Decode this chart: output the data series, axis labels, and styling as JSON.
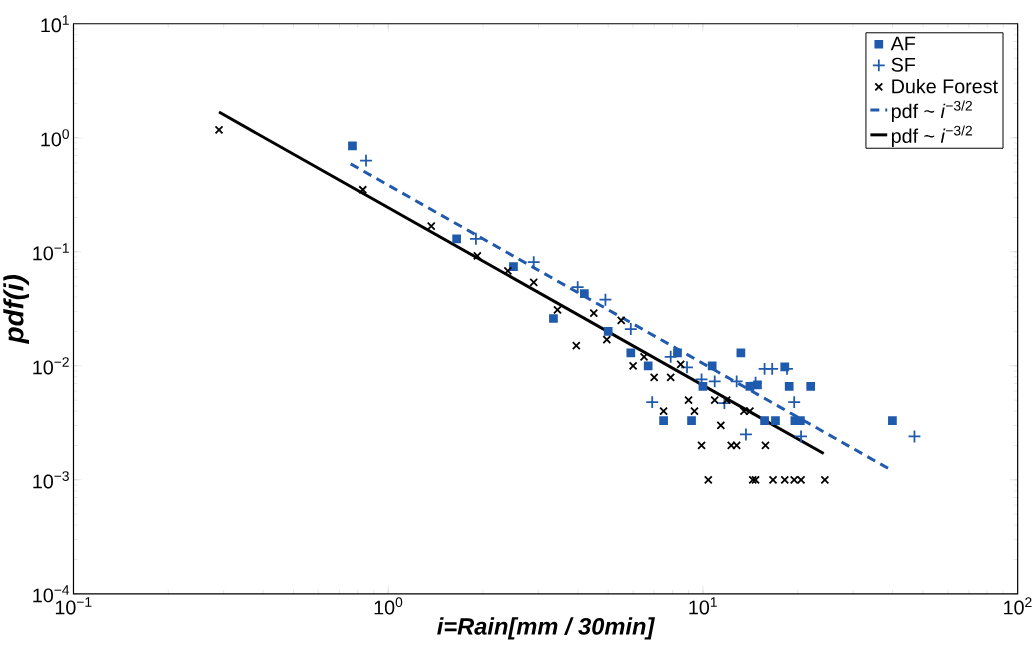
{
  "chart_data": {
    "type": "scatter",
    "xlabel": "i=Rain[mm / 30min]",
    "ylabel": "pdf(i)",
    "log": "xy",
    "xlim": [
      0.1,
      100
    ],
    "ylim": [
      0.0001,
      10
    ],
    "xticks": [
      {
        "value": 0.1,
        "label": "10$^{−1}$"
      },
      {
        "value": 1,
        "label": "10$^{0}$"
      },
      {
        "value": 10,
        "label": "10$^{1}$"
      },
      {
        "value": 100,
        "label": "10$^{2}$"
      }
    ],
    "yticks": [
      {
        "value": 0.0001,
        "label": "10$^{−4}$"
      },
      {
        "value": 0.001,
        "label": "10$^{−3}$"
      },
      {
        "value": 0.01,
        "label": "10$^{−2}$"
      },
      {
        "value": 0.1,
        "label": "10$^{−1}$"
      },
      {
        "value": 1,
        "label": "10$^{0}$"
      },
      {
        "value": 10,
        "label": "10$^{1}$"
      }
    ],
    "legend": "top right",
    "series": [
      {
        "name": "AF",
        "marker": "square",
        "color": "#1f5aad",
        "x": [
          0.77,
          1.65,
          2.5,
          3.35,
          4.2,
          5.0,
          5.9,
          6.7,
          7.5,
          8.3,
          9.2,
          10,
          10.7,
          13.2,
          14.1,
          14.9,
          15.7,
          17,
          18.2,
          18.8,
          19.6,
          20.4,
          22,
          40
        ],
        "values": [
          0.85,
          0.13,
          0.074,
          0.026,
          0.043,
          0.02,
          0.013,
          0.01,
          0.0033,
          0.013,
          0.0033,
          0.0066,
          0.01,
          0.013,
          0.0066,
          0.0068,
          0.0033,
          0.0033,
          0.0098,
          0.0066,
          0.0033,
          0.0033,
          0.0066,
          0.0033
        ]
      },
      {
        "name": "SF",
        "marker": "plus",
        "color": "#1f5aad",
        "x": [
          0.85,
          1.9,
          2.9,
          4.0,
          4.9,
          5.9,
          6.9,
          7.9,
          8.9,
          9.9,
          10.9,
          11.7,
          12.8,
          13.7,
          14.7,
          15.7,
          16.6,
          18.5,
          19.5,
          20.5,
          47
        ],
        "values": [
          0.63,
          0.13,
          0.081,
          0.049,
          0.038,
          0.021,
          0.0048,
          0.012,
          0.0097,
          0.0076,
          0.0073,
          0.0047,
          0.0073,
          0.0025,
          0.0071,
          0.0094,
          0.0094,
          0.0094,
          0.0048,
          0.0024,
          0.0024
        ]
      },
      {
        "name": "Duke Forest",
        "marker": "cross",
        "color": "#000000",
        "x": [
          0.29,
          0.83,
          1.37,
          1.92,
          2.4,
          2.9,
          3.45,
          3.96,
          4.5,
          4.95,
          5.5,
          6.0,
          6.5,
          7.0,
          7.5,
          7.9,
          8.5,
          9.0,
          9.4,
          9.9,
          10.4,
          10.9,
          11.4,
          11.9,
          12.3,
          12.8,
          13.5,
          14.1,
          14.4,
          14.7,
          15.8,
          16.7,
          18.2,
          19.5,
          20.5,
          24.4
        ],
        "values": [
          1.17,
          0.35,
          0.168,
          0.092,
          0.068,
          0.054,
          0.031,
          0.015,
          0.029,
          0.017,
          0.025,
          0.01,
          0.012,
          0.0079,
          0.004,
          0.0079,
          0.0103,
          0.005,
          0.004,
          0.002,
          0.001,
          0.005,
          0.003,
          0.005,
          0.002,
          0.002,
          0.004,
          0.004,
          0.001,
          0.001,
          0.002,
          0.001,
          0.001,
          0.001,
          0.001,
          0.001
        ]
      },
      {
        "name": "pdf ~ *i*$^{−3/2}$",
        "type": "line",
        "line_style": "dashed",
        "color": "#1f5aad",
        "x": [
          0.76,
          40
        ],
        "values": [
          0.59,
          0.0012
        ]
      },
      {
        "name": "pdf ~ *i*$^{−3/2}$",
        "type": "line",
        "line_style": "solid",
        "color": "#000000",
        "x": [
          0.29,
          24.2
        ],
        "values": [
          1.68,
          0.0017
        ]
      }
    ]
  }
}
